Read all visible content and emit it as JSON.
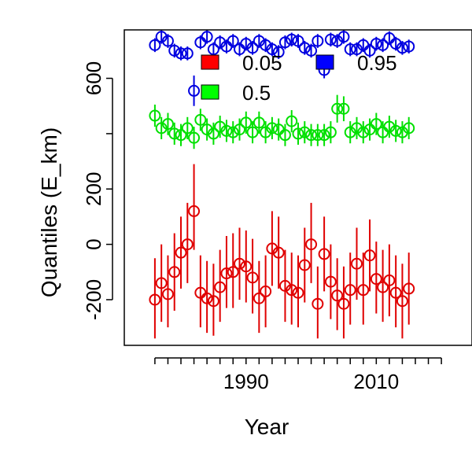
{
  "chart_data": {
    "type": "scatter",
    "title": "",
    "xlabel": "Year",
    "ylabel": "Quantiles (E_km)",
    "xlim": [
      1971.3,
      2024.7
    ],
    "ylim": [
      -365,
      775
    ],
    "xticks": [
      1990,
      2010
    ],
    "yticks": [
      -200,
      0,
      200,
      600
    ],
    "grid": false,
    "legend_position": "top",
    "legend": [
      {
        "label": "0.05",
        "color": "#ff0000"
      },
      {
        "label": "0.95",
        "color": "#0000ff"
      },
      {
        "label": "0.5",
        "color": "#00ff00"
      }
    ],
    "x": [
      1976,
      1978,
      1980,
      1982,
      1984,
      1986,
      1988,
      1990,
      1992,
      1994,
      1996,
      1998,
      2000,
      2002,
      2004,
      2006,
      2008,
      2010,
      2012,
      2014,
      2016,
      2018,
      2020
    ],
    "series": [
      {
        "name": "0.05",
        "color": "#e00000",
        "points": [
          [
            1976,
            -200,
            -340,
            -50
          ],
          [
            1977,
            -140,
            -280,
            0
          ],
          [
            1978,
            -180,
            -300,
            -40
          ],
          [
            1979,
            -100,
            -240,
            40
          ],
          [
            1980,
            -30,
            -160,
            100
          ],
          [
            1981,
            0,
            -140,
            150
          ],
          [
            1982,
            120,
            -20,
            290
          ],
          [
            1983,
            -175,
            -300,
            -40
          ],
          [
            1984,
            -195,
            -320,
            -60
          ],
          [
            1985,
            -205,
            -330,
            -70
          ],
          [
            1986,
            -155,
            -280,
            -20
          ],
          [
            1987,
            -105,
            -230,
            30
          ],
          [
            1988,
            -100,
            -230,
            40
          ],
          [
            1989,
            -70,
            -200,
            60
          ],
          [
            1990,
            -80,
            -210,
            50
          ],
          [
            1991,
            -120,
            -250,
            20
          ],
          [
            1992,
            -195,
            -320,
            -60
          ],
          [
            1993,
            -170,
            -300,
            -40
          ],
          [
            1994,
            -15,
            -150,
            120
          ],
          [
            1995,
            -30,
            -160,
            100
          ],
          [
            1996,
            -150,
            -280,
            -20
          ],
          [
            1997,
            -165,
            -290,
            -30
          ],
          [
            1998,
            -175,
            -300,
            -40
          ],
          [
            1999,
            -75,
            -210,
            60
          ],
          [
            2000,
            0,
            -140,
            150
          ],
          [
            2001,
            -215,
            -340,
            -80
          ],
          [
            2002,
            -35,
            -170,
            100
          ],
          [
            2003,
            -135,
            -270,
            0
          ],
          [
            2004,
            -185,
            -310,
            -50
          ],
          [
            2005,
            -215,
            -340,
            -80
          ],
          [
            2006,
            -165,
            -290,
            -30
          ],
          [
            2007,
            -70,
            -200,
            60
          ],
          [
            2008,
            -165,
            -290,
            -30
          ],
          [
            2009,
            -40,
            -170,
            90
          ],
          [
            2010,
            -125,
            -250,
            10
          ],
          [
            2011,
            -155,
            -280,
            -20
          ],
          [
            2012,
            -130,
            -260,
            0
          ],
          [
            2013,
            -175,
            -300,
            -40
          ],
          [
            2014,
            -205,
            -340,
            -70
          ],
          [
            2015,
            -160,
            -290,
            -30
          ]
        ]
      },
      {
        "name": "0.5",
        "color": "#00e000",
        "points": [
          [
            1976,
            465,
            425,
            505
          ],
          [
            1977,
            420,
            380,
            460
          ],
          [
            1978,
            435,
            395,
            475
          ],
          [
            1979,
            400,
            360,
            440
          ],
          [
            1980,
            395,
            355,
            435
          ],
          [
            1981,
            420,
            380,
            460
          ],
          [
            1982,
            385,
            345,
            425
          ],
          [
            1983,
            450,
            410,
            490
          ],
          [
            1984,
            415,
            375,
            455
          ],
          [
            1985,
            400,
            360,
            440
          ],
          [
            1986,
            425,
            385,
            465
          ],
          [
            1987,
            410,
            370,
            450
          ],
          [
            1988,
            405,
            365,
            445
          ],
          [
            1989,
            415,
            375,
            455
          ],
          [
            1990,
            440,
            400,
            480
          ],
          [
            1991,
            405,
            365,
            445
          ],
          [
            1992,
            440,
            400,
            480
          ],
          [
            1993,
            405,
            365,
            445
          ],
          [
            1994,
            420,
            380,
            460
          ],
          [
            1995,
            415,
            375,
            455
          ],
          [
            1996,
            395,
            355,
            435
          ],
          [
            1997,
            445,
            405,
            485
          ],
          [
            1998,
            400,
            360,
            440
          ],
          [
            1999,
            405,
            365,
            445
          ],
          [
            2000,
            395,
            355,
            435
          ],
          [
            2001,
            395,
            355,
            435
          ],
          [
            2002,
            395,
            355,
            435
          ],
          [
            2003,
            405,
            365,
            445
          ],
          [
            2004,
            490,
            440,
            540
          ],
          [
            2005,
            490,
            445,
            535
          ],
          [
            2006,
            405,
            365,
            445
          ],
          [
            2007,
            420,
            380,
            460
          ],
          [
            2008,
            405,
            365,
            445
          ],
          [
            2009,
            415,
            375,
            455
          ],
          [
            2010,
            435,
            395,
            475
          ],
          [
            2011,
            405,
            365,
            445
          ],
          [
            2012,
            425,
            385,
            465
          ],
          [
            2013,
            410,
            370,
            450
          ],
          [
            2014,
            405,
            365,
            445
          ],
          [
            2015,
            420,
            380,
            460
          ]
        ]
      },
      {
        "name": "0.95",
        "color": "#0000e0",
        "points": [
          [
            1976,
            720,
            695,
            745
          ],
          [
            1977,
            750,
            725,
            775
          ],
          [
            1978,
            735,
            710,
            760
          ],
          [
            1979,
            700,
            675,
            725
          ],
          [
            1980,
            690,
            665,
            715
          ],
          [
            1981,
            690,
            665,
            715
          ],
          [
            1982,
            555,
            500,
            610
          ],
          [
            1983,
            730,
            705,
            755
          ],
          [
            1984,
            750,
            725,
            775
          ],
          [
            1985,
            705,
            680,
            730
          ],
          [
            1986,
            730,
            705,
            755
          ],
          [
            1987,
            715,
            690,
            740
          ],
          [
            1988,
            735,
            710,
            760
          ],
          [
            1989,
            705,
            680,
            730
          ],
          [
            1990,
            725,
            700,
            750
          ],
          [
            1991,
            710,
            685,
            735
          ],
          [
            1992,
            735,
            710,
            760
          ],
          [
            1993,
            720,
            695,
            745
          ],
          [
            1994,
            705,
            680,
            730
          ],
          [
            1995,
            695,
            670,
            720
          ],
          [
            1996,
            730,
            705,
            755
          ],
          [
            1997,
            740,
            715,
            765
          ],
          [
            1998,
            735,
            710,
            760
          ],
          [
            1999,
            710,
            685,
            735
          ],
          [
            2000,
            700,
            675,
            725
          ],
          [
            2001,
            735,
            710,
            760
          ],
          [
            2002,
            630,
            600,
            660
          ],
          [
            2003,
            740,
            715,
            765
          ],
          [
            2004,
            735,
            710,
            760
          ],
          [
            2005,
            750,
            725,
            775
          ],
          [
            2006,
            705,
            680,
            730
          ],
          [
            2007,
            705,
            680,
            730
          ],
          [
            2008,
            720,
            695,
            745
          ],
          [
            2009,
            700,
            675,
            725
          ],
          [
            2010,
            725,
            700,
            750
          ],
          [
            2011,
            720,
            695,
            745
          ],
          [
            2012,
            745,
            720,
            770
          ],
          [
            2013,
            725,
            700,
            750
          ],
          [
            2014,
            710,
            685,
            735
          ],
          [
            2015,
            715,
            690,
            740
          ]
        ]
      }
    ]
  }
}
